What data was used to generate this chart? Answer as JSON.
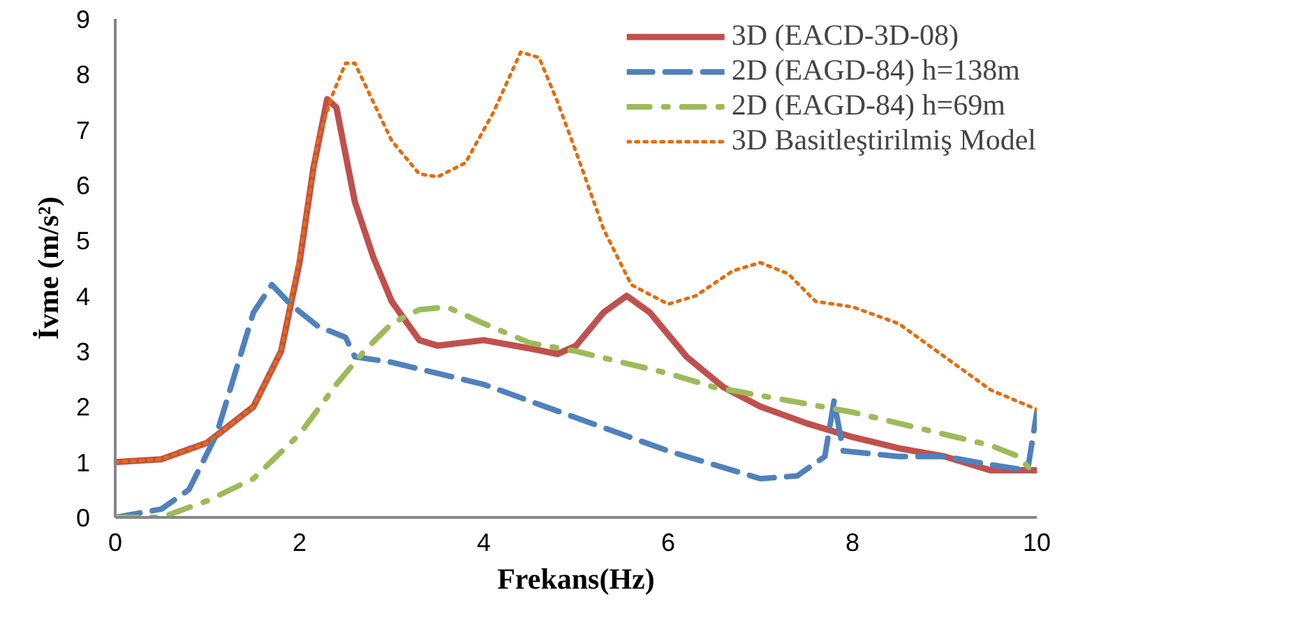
{
  "chart_data": {
    "type": "line",
    "xlabel": "Frekans(Hz)",
    "ylabel": "İvme (m/s²)",
    "xlim": [
      0,
      10
    ],
    "ylim": [
      0,
      9
    ],
    "xticks": [
      0,
      2,
      4,
      6,
      8,
      10
    ],
    "yticks": [
      0,
      1,
      2,
      3,
      4,
      5,
      6,
      7,
      8,
      9
    ],
    "grid": false,
    "legend": "top right",
    "marker": "none",
    "series": [
      {
        "name": "3D (EACD-3D-08)",
        "color": "#c0504d",
        "line_style": "solid",
        "x": [
          0,
          0.5,
          1,
          1.5,
          1.8,
          2.0,
          2.15,
          2.3,
          2.4,
          2.6,
          2.8,
          3.0,
          3.3,
          3.5,
          4.0,
          4.5,
          4.8,
          5.0,
          5.3,
          5.55,
          5.8,
          6.2,
          6.6,
          7.0,
          7.5,
          8.0,
          8.5,
          9.0,
          9.5,
          10
        ],
        "values": [
          1.0,
          1.05,
          1.35,
          2.0,
          3.0,
          4.6,
          6.3,
          7.55,
          7.4,
          5.7,
          4.7,
          3.9,
          3.2,
          3.1,
          3.2,
          3.05,
          2.95,
          3.1,
          3.7,
          4.0,
          3.7,
          2.9,
          2.35,
          2.0,
          1.7,
          1.45,
          1.25,
          1.1,
          0.85,
          0.85
        ]
      },
      {
        "name": "2D (EAGD-84) h=138m",
        "color": "#4f81bd",
        "line_style": "dashed",
        "x": [
          0,
          0.5,
          0.8,
          1.1,
          1.3,
          1.5,
          1.7,
          1.9,
          2.2,
          2.5,
          2.6,
          3.0,
          4.0,
          5.0,
          6.0,
          7.0,
          7.4,
          7.7,
          7.8,
          7.9,
          8.5,
          9.0,
          9.5,
          9.9,
          10
        ],
        "values": [
          0,
          0.15,
          0.5,
          1.5,
          2.6,
          3.7,
          4.2,
          3.85,
          3.45,
          3.25,
          2.9,
          2.8,
          2.4,
          1.8,
          1.2,
          0.7,
          0.75,
          1.1,
          2.1,
          1.2,
          1.1,
          1.1,
          0.95,
          0.85,
          1.9
        ]
      },
      {
        "name": "2D (EAGD-84) h=69m",
        "color": "#9bbb59",
        "line_style": "dashdot",
        "x": [
          0,
          0.5,
          1.0,
          1.5,
          2.0,
          2.4,
          2.7,
          3.0,
          3.3,
          3.6,
          4.0,
          4.5,
          5.0,
          5.5,
          6.0,
          6.5,
          7.0,
          7.5,
          8.0,
          8.5,
          9.0,
          9.5,
          9.8,
          10
        ],
        "values": [
          0,
          0,
          0.3,
          0.7,
          1.5,
          2.4,
          3.0,
          3.5,
          3.75,
          3.8,
          3.5,
          3.15,
          3.0,
          2.8,
          2.6,
          2.35,
          2.2,
          2.05,
          1.9,
          1.7,
          1.5,
          1.3,
          1.1,
          0.75
        ]
      },
      {
        "name": "3D Basitleştirilmiş Model",
        "color": "#e46c0a",
        "line_style": "dotted",
        "x": [
          0,
          0.5,
          1,
          1.5,
          1.8,
          2.0,
          2.2,
          2.35,
          2.5,
          2.6,
          2.8,
          3.0,
          3.3,
          3.5,
          3.8,
          4.1,
          4.4,
          4.6,
          4.8,
          5.0,
          5.3,
          5.6,
          6.0,
          6.3,
          6.7,
          7.0,
          7.3,
          7.6,
          8.0,
          8.5,
          9.0,
          9.5,
          10
        ],
        "values": [
          1.0,
          1.05,
          1.35,
          2.0,
          3.0,
          4.7,
          6.8,
          7.6,
          8.2,
          8.2,
          7.5,
          6.8,
          6.2,
          6.15,
          6.4,
          7.3,
          8.4,
          8.3,
          7.5,
          6.6,
          5.2,
          4.2,
          3.85,
          4.0,
          4.45,
          4.6,
          4.4,
          3.9,
          3.8,
          3.5,
          2.9,
          2.3,
          1.95
        ]
      }
    ]
  }
}
